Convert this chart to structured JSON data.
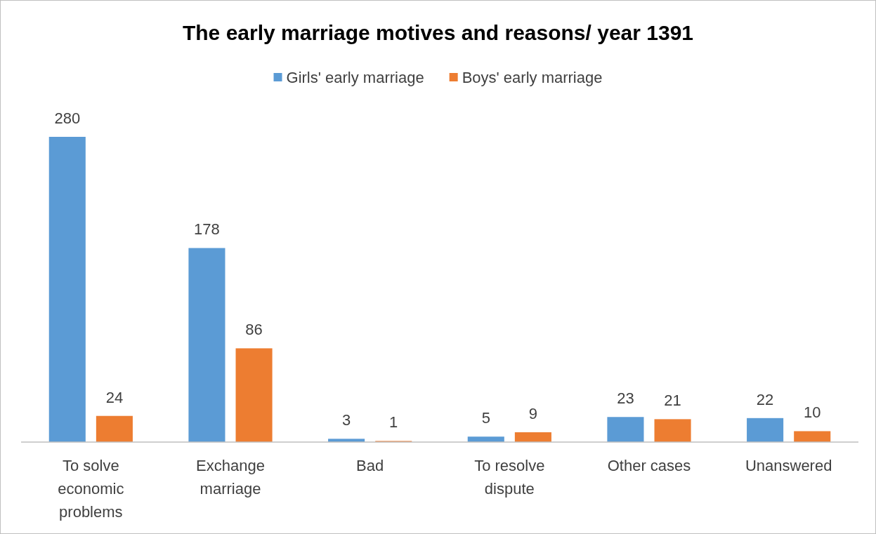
{
  "chart_data": {
    "type": "bar",
    "title": "The early marriage motives and reasons/ year 1391",
    "categories": [
      "To solve economic problems",
      "Exchange marriage",
      "Bad",
      "To resolve dispute",
      "Other cases",
      "Unanswered"
    ],
    "series": [
      {
        "name": "Girls' early marriage",
        "color": "#5b9bd5",
        "values": [
          280,
          178,
          3,
          5,
          23,
          22
        ]
      },
      {
        "name": "Boys' early marriage",
        "color": "#ed7d31",
        "values": [
          24,
          86,
          1,
          9,
          21,
          10
        ]
      }
    ],
    "data_labels": true,
    "legend": "top"
  }
}
